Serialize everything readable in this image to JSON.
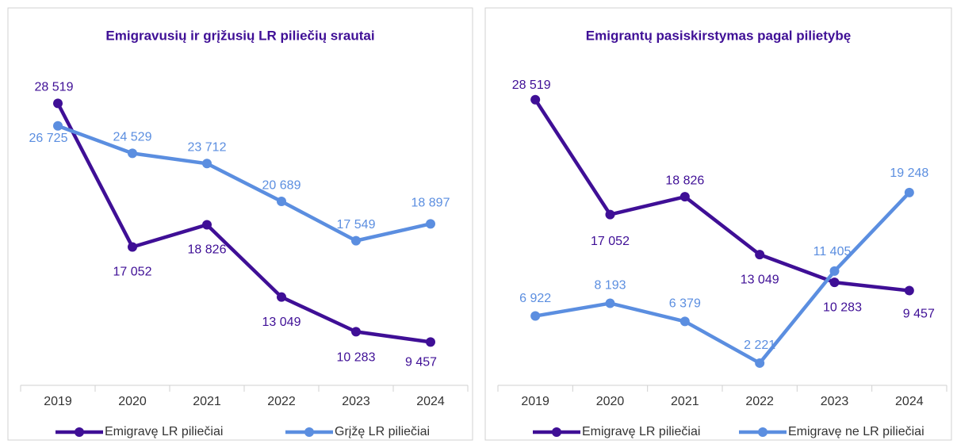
{
  "chart_data": [
    {
      "type": "line",
      "title": "Emigravusių ir grįžusių LR piliečių srautai",
      "categories": [
        "2019",
        "2020",
        "2021",
        "2022",
        "2023",
        "2024"
      ],
      "ylim": [
        6000,
        30000
      ],
      "series": [
        {
          "name": "Emigravę LR piliečiai",
          "color": "#3f0f96",
          "values": [
            28519,
            17052,
            18826,
            13049,
            10283,
            9457
          ],
          "value_labels": [
            "28 519",
            "17 052",
            "18 826",
            "13 049",
            "10 283",
            "9 457"
          ]
        },
        {
          "name": "Grįžę LR piliečiai",
          "color": "#5b8ee0",
          "values": [
            26725,
            24529,
            23712,
            20689,
            17549,
            18897
          ],
          "value_labels": [
            "26 725",
            "24 529",
            "23 712",
            "20 689",
            "17 549",
            "18 897"
          ]
        }
      ]
    },
    {
      "type": "line",
      "title": "Emigrantų pasiskirstymas pagal pilietybę",
      "categories": [
        "2019",
        "2020",
        "2021",
        "2022",
        "2023",
        "2024"
      ],
      "ylim": [
        0,
        30000
      ],
      "series": [
        {
          "name": "Emigravę LR piliečiai",
          "color": "#3f0f96",
          "values": [
            28519,
            17052,
            18826,
            13049,
            10283,
            9457
          ],
          "value_labels": [
            "28 519",
            "17 052",
            "18 826",
            "13 049",
            "10 283",
            "9 457"
          ]
        },
        {
          "name": "Emigravę ne LR piliečiai",
          "color": "#5b8ee0",
          "values": [
            6922,
            8193,
            6379,
            2221,
            11405,
            19248
          ],
          "value_labels": [
            "6 922",
            "8 193",
            "6 379",
            "2 221",
            "11 405",
            "19 248"
          ]
        }
      ]
    }
  ]
}
